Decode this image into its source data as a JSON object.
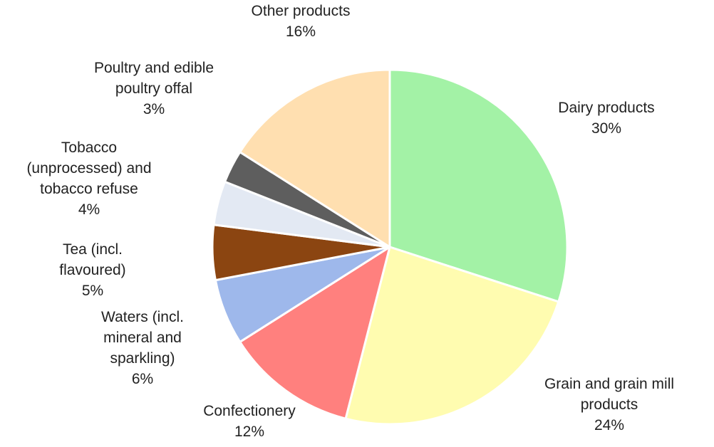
{
  "chart_data": {
    "type": "pie",
    "title": "",
    "start_angle_deg": 0,
    "direction": "clockwise",
    "slices": [
      {
        "label": [
          "Dairy products"
        ],
        "value": 30,
        "value_label": "30%",
        "color": "#A3F2A6"
      },
      {
        "label": [
          "Grain and grain mill",
          "products"
        ],
        "value": 24,
        "value_label": "24%",
        "color": "#FFFCB0"
      },
      {
        "label": [
          "Confectionery"
        ],
        "value": 12,
        "value_label": "12%",
        "color": "#FF807E"
      },
      {
        "label": [
          "Waters (incl.",
          "mineral and",
          "sparkling)"
        ],
        "value": 6,
        "value_label": "6%",
        "color": "#9EB8EB"
      },
      {
        "label": [
          "Tea (incl.",
          "flavoured)"
        ],
        "value": 5,
        "value_label": "5%",
        "color": "#8B4511"
      },
      {
        "label": [
          "Tobacco",
          "(unprocessed) and",
          "tobacco refuse"
        ],
        "value": 4,
        "value_label": "4%",
        "color": "#E3E9F3"
      },
      {
        "label": [
          "Poultry and edible",
          "poultry offal"
        ],
        "value": 3,
        "value_label": "3%",
        "color": "#5E5E5E"
      },
      {
        "label": [
          "Other products"
        ],
        "value": 16,
        "value_label": "16%",
        "color": "#FFDFB0"
      }
    ]
  }
}
